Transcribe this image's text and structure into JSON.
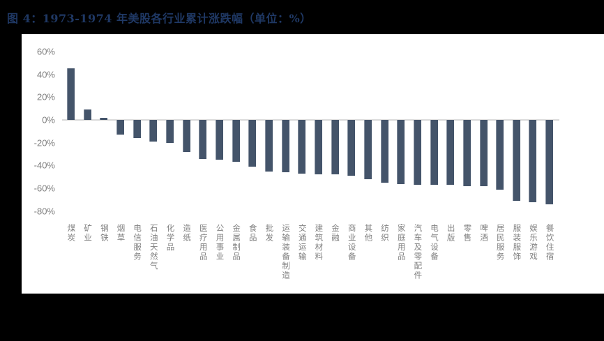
{
  "page": {
    "background": "#000000",
    "panel_background": "#ffffff"
  },
  "title": {
    "text": "图 4：1973-1974 年美股各行业累计涨跌幅（单位：%）",
    "color": "#1f3864"
  },
  "chart_data": {
    "type": "bar",
    "title": "图 4：1973-1974 年美股各行业累计涨跌幅（单位：%）",
    "unit": "%",
    "categories": [
      "煤炭",
      "矿业",
      "钢铁",
      "烟草",
      "电信服务",
      "石油天然气",
      "化学品",
      "造纸",
      "医疗用品",
      "公用事业",
      "金属制品",
      "食品",
      "批发",
      "运输装备制造",
      "交通运输",
      "建筑材料",
      "金融",
      "商业设备",
      "其他",
      "纺织",
      "家庭用品",
      "汽车及零配件",
      "电气设备",
      "出版",
      "零售",
      "啤酒",
      "居民服务",
      "服装服饰",
      "娱乐游戏",
      "餐饮住宿"
    ],
    "values": [
      45,
      9,
      2,
      -13,
      -16,
      -19,
      -20,
      -28,
      -34,
      -35,
      -37,
      -41,
      -45,
      -46,
      -47,
      -48,
      -48,
      -49,
      -52,
      -55,
      -56,
      -57,
      -57,
      -57,
      -58,
      -58,
      -61,
      -71,
      -72,
      -74
    ],
    "xlabel": "",
    "ylabel": "",
    "ylim": [
      -80,
      60
    ],
    "ytick_step": 20,
    "ytick_labels": [
      "60%",
      "40%",
      "20%",
      "0%",
      "-20%",
      "-40%",
      "-60%",
      "-80%"
    ],
    "ytick_values": [
      60,
      40,
      20,
      0,
      -20,
      -40,
      -60,
      -80
    ],
    "grid": false,
    "legend": null,
    "bar_color": "#44546a",
    "axis_label_color": "#7f7f7f",
    "zero_line_color": "#d9d9d9"
  }
}
